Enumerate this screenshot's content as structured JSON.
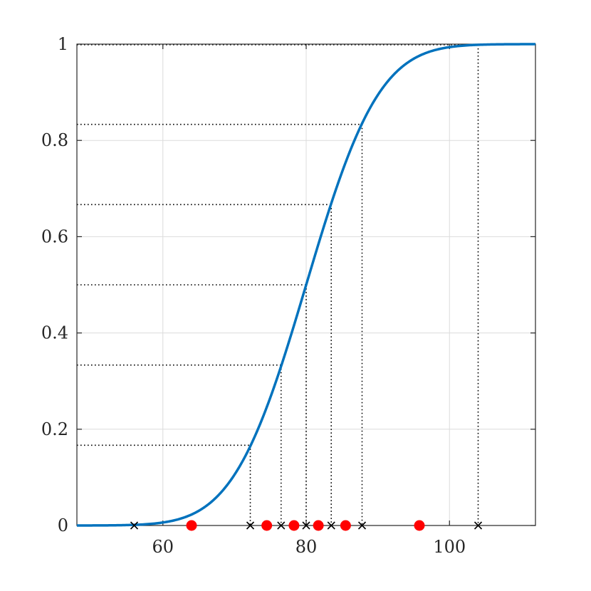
{
  "chart_data": {
    "type": "line",
    "title": "",
    "xlabel": "",
    "ylabel": "",
    "xlim": [
      48,
      112
    ],
    "ylim": [
      0,
      1
    ],
    "grid": true,
    "x_ticks": [
      60,
      80,
      100
    ],
    "x_tick_labels": [
      "60",
      "80",
      "100"
    ],
    "y_ticks": [
      0,
      0.2,
      0.4,
      0.6,
      0.8,
      1
    ],
    "y_tick_labels": [
      "0",
      "0.2",
      "0.4",
      "0.6",
      "0.8",
      "1"
    ],
    "series": [
      {
        "type": "line",
        "kind": "normal_cdf",
        "mean": 80,
        "std": 8,
        "color": "#0072bd"
      },
      {
        "type": "scatter",
        "marker": "x",
        "color": "#000000",
        "x": [
          56.0,
          72.2,
          76.5,
          80.0,
          83.5,
          87.8,
          104.0
        ],
        "y": [
          0,
          0,
          0,
          0,
          0,
          0,
          0
        ]
      },
      {
        "type": "scatter",
        "marker": "o",
        "color": "#ff0000",
        "x": [
          64.0,
          74.5,
          78.3,
          81.7,
          85.5,
          95.8
        ],
        "y": [
          0,
          0,
          0,
          0,
          0,
          0
        ]
      }
    ],
    "guides": [
      {
        "x": 72.2,
        "y": 0.1667
      },
      {
        "x": 76.5,
        "y": 0.3333
      },
      {
        "x": 80.0,
        "y": 0.5
      },
      {
        "x": 83.5,
        "y": 0.6667
      },
      {
        "x": 87.8,
        "y": 0.8333
      },
      {
        "x": 104.0,
        "y": 0.9987
      }
    ]
  }
}
